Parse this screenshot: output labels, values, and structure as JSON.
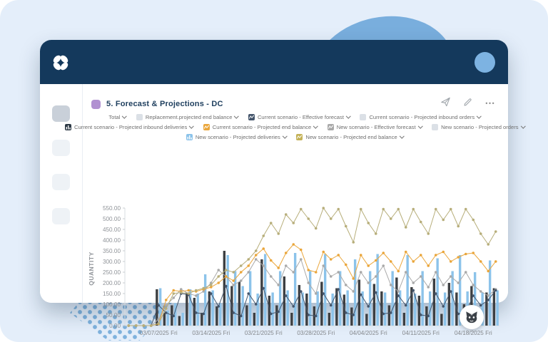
{
  "theme": {
    "background": "#e4eefa",
    "header": "#14395c",
    "blob": "#79aedd",
    "dots": "#7fb2dd",
    "accent_purple": "#b191d1",
    "avatar": "#7db3e2",
    "dark_bar": "#3d3f42",
    "blue_bar": "#8cc3ea",
    "khaki_line": "#b7ae7a",
    "orange_line": "#eaa63b",
    "grey_line": "#a9a9a9",
    "navy_line": "#44556b"
  },
  "card": {
    "title": "5. Forecast & Projections - DC",
    "toolbar": [
      {
        "name": "send"
      },
      {
        "name": "edit"
      },
      {
        "name": "more"
      }
    ]
  },
  "sidebar": {
    "items": 4
  },
  "filters": {
    "rows": [
      [
        {
          "label": "Total",
          "icon": "none"
        },
        {
          "label": "Replacement.projected end balance",
          "icon": "checkbox"
        },
        {
          "label": "Current scenario - Effective forecast",
          "icon": "line",
          "color": "#44556b"
        },
        {
          "label": "Current scenario - Projected inbound orders",
          "icon": "checkbox"
        }
      ],
      [
        {
          "label": "Current scenario - Projected inbound deliveries",
          "icon": "bar",
          "color": "#2e3a46"
        },
        {
          "label": "Current scenario - Projected end balance",
          "icon": "line",
          "color": "#eaa63b"
        },
        {
          "label": "New scenario - Effective forecast",
          "icon": "line",
          "color": "#a9a9a9"
        },
        {
          "label": "New scenario - Projected orders",
          "icon": "checkbox"
        }
      ],
      [
        {
          "label": "New scenario - Projected deliveries",
          "icon": "bar",
          "color": "#8cc3ea"
        },
        {
          "label": "New scenario - Projected end balance",
          "icon": "line",
          "color": "#c4b257"
        }
      ]
    ]
  },
  "chart_data": {
    "type": "bar",
    "title": "",
    "xlabel": "",
    "ylabel": "QUANTITY",
    "ylim": [
      0,
      550
    ],
    "ytick_step": 50,
    "grid": false,
    "days": 50,
    "x_tick_labels": [
      "03/07/2025 Fri",
      "03/14/2025 Fri",
      "03/21/2025 Fri",
      "03/28/2025 Fri",
      "04/04/2025 Fri",
      "04/11/2025 Fri",
      "04/18/2025 Fri"
    ],
    "x_tick_day_indices": [
      4,
      11,
      18,
      25,
      32,
      39,
      46
    ],
    "series": [
      {
        "name": "Current scenario - Projected inbound deliveries",
        "type": "bar",
        "color": "#3d3f42",
        "offset": -4.1,
        "values": [
          0,
          0,
          0,
          0,
          170,
          60,
          95,
          45,
          155,
          130,
          60,
          160,
          90,
          350,
          185,
          205,
          95,
          60,
          310,
          140,
          95,
          230,
          60,
          190,
          150,
          90,
          205,
          60,
          175,
          145,
          85,
          215,
          55,
          195,
          160,
          95,
          225,
          60,
          180,
          140,
          90,
          220,
          55,
          200,
          155,
          100,
          185,
          60,
          155,
          175
        ]
      },
      {
        "name": "New scenario - Projected deliveries",
        "type": "bar",
        "color": "#8cc3ea",
        "offset": 0.7,
        "values": [
          0,
          0,
          0,
          0,
          175,
          70,
          105,
          60,
          170,
          150,
          240,
          165,
          105,
          330,
          255,
          185,
          255,
          150,
          335,
          155,
          255,
          165,
          340,
          155,
          255,
          160,
          335,
          150,
          255,
          165,
          310,
          160,
          255,
          335,
          155,
          255,
          165,
          330,
          150,
          255,
          160,
          315,
          155,
          255,
          330,
          160,
          250,
          155,
          305,
          165
        ]
      },
      {
        "name": "New scenario - Effective forecast",
        "type": "line",
        "color": "#a9a9a9",
        "values": [
          0,
          0,
          0,
          0,
          30,
          95,
          130,
          170,
          150,
          140,
          160,
          200,
          260,
          230,
          190,
          210,
          250,
          310,
          280,
          230,
          190,
          280,
          250,
          310,
          200,
          150,
          280,
          230,
          250,
          190,
          160,
          250,
          200,
          230,
          280,
          190,
          160,
          250,
          200,
          230,
          180,
          250,
          190,
          230,
          200,
          250,
          190,
          160,
          140,
          170
        ]
      },
      {
        "name": "Current scenario - Effective forecast",
        "type": "line",
        "color": "#44556b",
        "values": [
          0,
          0,
          0,
          0,
          95,
          60,
          45,
          150,
          145,
          60,
          55,
          150,
          90,
          185,
          60,
          45,
          150,
          100,
          175,
          55,
          65,
          140,
          90,
          160,
          50,
          45,
          150,
          95,
          170,
          60,
          50,
          145,
          90,
          155,
          55,
          60,
          140,
          95,
          165,
          50,
          45,
          150,
          90,
          160,
          55,
          60,
          140,
          95,
          120,
          165
        ]
      },
      {
        "name": "Current scenario - Projected end balance",
        "type": "line",
        "color": "#eaa63b",
        "values": [
          0,
          0,
          0,
          0,
          8,
          120,
          165,
          160,
          165,
          160,
          170,
          180,
          200,
          230,
          210,
          250,
          280,
          330,
          360,
          305,
          270,
          340,
          380,
          355,
          260,
          250,
          345,
          310,
          330,
          285,
          220,
          330,
          280,
          305,
          340,
          300,
          255,
          345,
          300,
          330,
          280,
          330,
          345,
          300,
          320,
          335,
          340,
          300,
          255,
          300
        ]
      },
      {
        "name": "New scenario - Projected end balance",
        "type": "line",
        "color": "#b7ae7a",
        "values": [
          0,
          0,
          0,
          0,
          10,
          80,
          150,
          155,
          150,
          165,
          175,
          190,
          230,
          260,
          250,
          280,
          310,
          350,
          420,
          480,
          430,
          520,
          480,
          545,
          500,
          455,
          550,
          500,
          545,
          465,
          390,
          545,
          480,
          430,
          545,
          500,
          545,
          460,
          545,
          485,
          430,
          545,
          495,
          545,
          465,
          545,
          495,
          430,
          380,
          440
        ]
      }
    ]
  }
}
